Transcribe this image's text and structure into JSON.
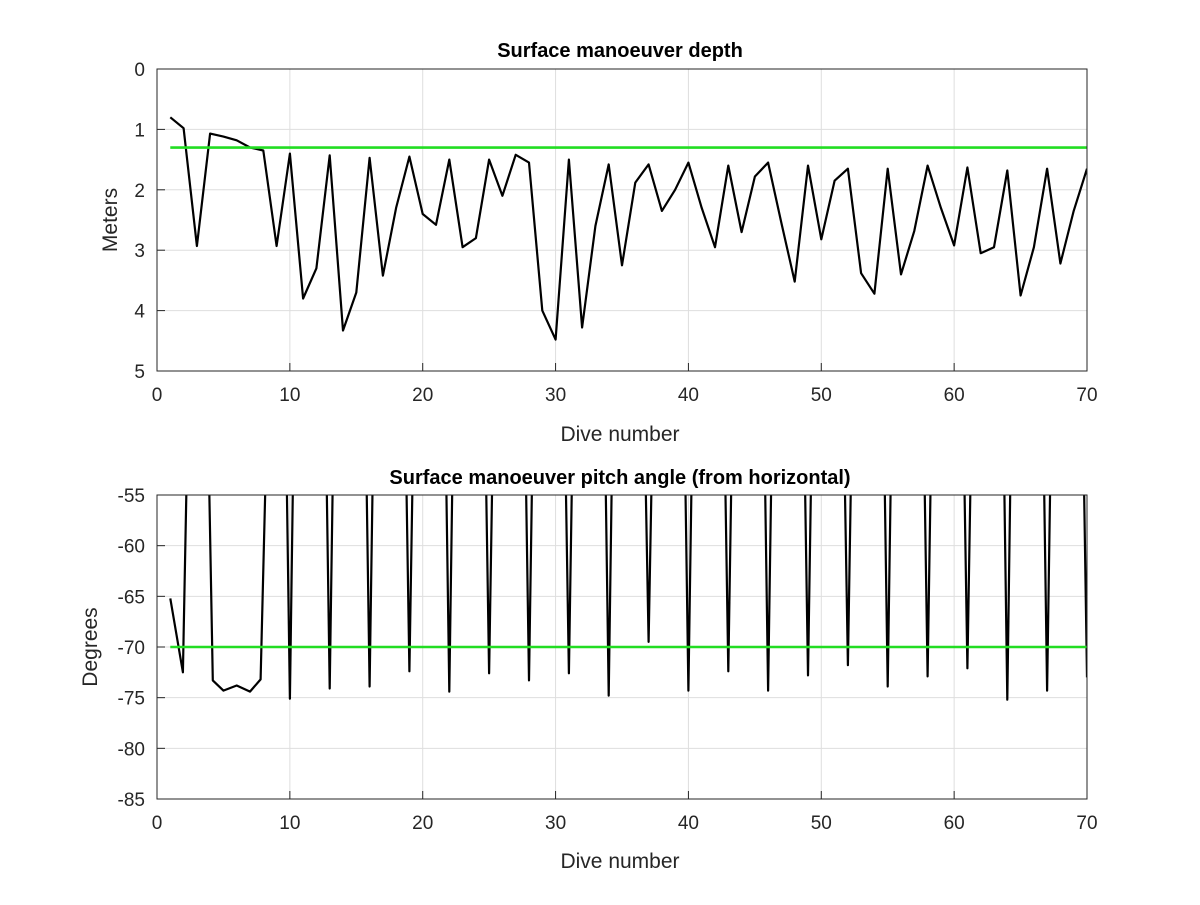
{
  "chart_data": [
    {
      "type": "line",
      "title": "Surface manoeuver depth",
      "xlabel": "Dive number",
      "ylabel": "Meters",
      "xlim": [
        0,
        70
      ],
      "ylim": [
        0,
        5
      ],
      "y_reversed": true,
      "grid": true,
      "x_ticks": [
        "0",
        "10",
        "20",
        "30",
        "40",
        "50",
        "60",
        "70"
      ],
      "y_ticks": [
        "0",
        "1",
        "2",
        "3",
        "4",
        "5"
      ],
      "threshold": {
        "value": 1.3,
        "color": "#22dd22"
      },
      "series": [
        {
          "color": "#000000",
          "x": [
            1,
            2,
            3,
            4,
            5,
            6,
            7,
            8,
            9,
            10,
            11,
            12,
            13,
            14,
            15,
            16,
            17,
            18,
            19,
            20,
            21,
            22,
            23,
            24,
            25,
            26,
            27,
            28,
            29,
            30,
            31,
            32,
            33,
            34,
            35,
            36,
            37,
            38,
            39,
            40,
            41,
            42,
            43,
            44,
            45,
            46,
            47,
            48,
            49,
            50,
            51,
            52,
            53,
            54,
            55,
            56,
            57,
            58,
            59,
            60,
            61,
            62,
            63,
            64,
            65,
            66,
            67,
            68,
            69,
            70
          ],
          "y": [
            0.8,
            0.98,
            2.93,
            1.07,
            1.12,
            1.18,
            1.3,
            1.35,
            2.93,
            1.4,
            3.8,
            3.3,
            1.43,
            4.33,
            3.7,
            1.47,
            3.42,
            2.3,
            1.45,
            2.4,
            2.58,
            1.5,
            2.95,
            2.8,
            1.5,
            2.1,
            1.42,
            1.55,
            4.0,
            4.48,
            1.5,
            4.28,
            2.6,
            1.58,
            3.25,
            1.88,
            1.58,
            2.35,
            2.0,
            1.55,
            2.3,
            2.95,
            1.6,
            2.7,
            1.78,
            1.55,
            2.55,
            3.52,
            1.6,
            2.82,
            1.85,
            1.65,
            3.38,
            3.72,
            1.65,
            3.4,
            2.68,
            1.6,
            2.3,
            2.92,
            1.63,
            3.05,
            2.95,
            1.68,
            3.75,
            2.95,
            1.65,
            3.22,
            2.35,
            1.65
          ]
        }
      ]
    },
    {
      "type": "line",
      "title": "Surface manoeuver pitch angle (from horizontal)",
      "xlabel": "Dive number",
      "ylabel": "Degrees",
      "xlim": [
        0,
        70
      ],
      "ylim": [
        -85,
        -55
      ],
      "grid": true,
      "x_ticks": [
        "0",
        "10",
        "20",
        "30",
        "40",
        "50",
        "60",
        "70"
      ],
      "y_ticks": [
        "-55",
        "-60",
        "-65",
        "-70",
        "-75",
        "-80",
        "-85"
      ],
      "threshold": {
        "value": -70,
        "color": "#22dd22"
      },
      "series": [
        {
          "color": "#000000",
          "points": [
            [
              1,
              -65.2
            ],
            [
              1.95,
              -72.5
            ],
            [
              2.25,
              -52
            ],
            [
              3.9,
              -52
            ],
            [
              4.2,
              -73.3
            ],
            [
              5,
              -74.3
            ],
            [
              6,
              -73.8
            ],
            [
              7,
              -74.4
            ],
            [
              7.8,
              -73.2
            ],
            [
              8.2,
              -52
            ],
            [
              9.75,
              -52
            ],
            [
              10,
              -75.1
            ],
            [
              10.25,
              -52
            ],
            [
              12.75,
              -52
            ],
            [
              13,
              -74.1
            ],
            [
              13.25,
              -52
            ],
            [
              15.75,
              -52
            ],
            [
              16,
              -73.9
            ],
            [
              16.25,
              -52
            ],
            [
              18.75,
              -52
            ],
            [
              19,
              -72.4
            ],
            [
              19.25,
              -52
            ],
            [
              21.75,
              -52
            ],
            [
              22,
              -74.4
            ],
            [
              22.25,
              -52
            ],
            [
              24.75,
              -52
            ],
            [
              25,
              -72.6
            ],
            [
              25.25,
              -52
            ],
            [
              27.75,
              -52
            ],
            [
              28,
              -73.3
            ],
            [
              28.25,
              -52
            ],
            [
              30.75,
              -52
            ],
            [
              31,
              -72.6
            ],
            [
              31.25,
              -52
            ],
            [
              33.75,
              -52
            ],
            [
              34,
              -74.8
            ],
            [
              34.25,
              -52
            ],
            [
              36.75,
              -52
            ],
            [
              37,
              -69.5
            ],
            [
              37.25,
              -52
            ],
            [
              39.75,
              -52
            ],
            [
              40,
              -74.3
            ],
            [
              40.25,
              -52
            ],
            [
              42.75,
              -52
            ],
            [
              43,
              -72.4
            ],
            [
              43.25,
              -52
            ],
            [
              45.75,
              -52
            ],
            [
              46,
              -74.3
            ],
            [
              46.25,
              -52
            ],
            [
              48.75,
              -52
            ],
            [
              49,
              -72.8
            ],
            [
              49.25,
              -52
            ],
            [
              51.75,
              -52
            ],
            [
              52,
              -71.8
            ],
            [
              52.25,
              -52
            ],
            [
              54.75,
              -52
            ],
            [
              55,
              -73.9
            ],
            [
              55.25,
              -52
            ],
            [
              57.75,
              -52
            ],
            [
              58,
              -72.9
            ],
            [
              58.25,
              -52
            ],
            [
              60.75,
              -52
            ],
            [
              61,
              -72.1
            ],
            [
              61.25,
              -52
            ],
            [
              63.75,
              -52
            ],
            [
              64,
              -75.2
            ],
            [
              64.25,
              -52
            ],
            [
              66.75,
              -52
            ],
            [
              67,
              -74.3
            ],
            [
              67.25,
              -52
            ],
            [
              69.75,
              -52
            ],
            [
              70,
              -73.0
            ]
          ]
        }
      ]
    }
  ]
}
